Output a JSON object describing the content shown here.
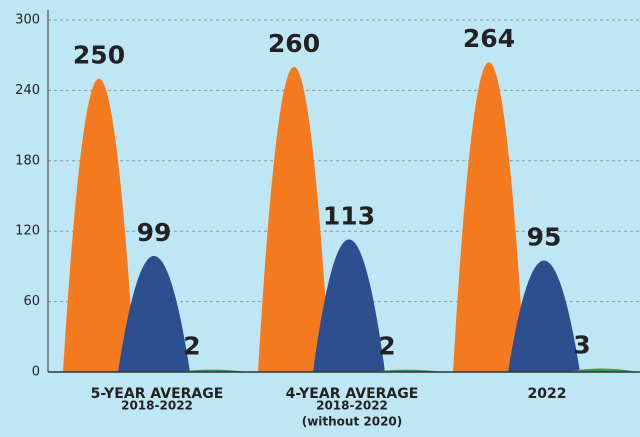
{
  "chart_data": {
    "type": "hump",
    "categories": [
      [
        "5-YEAR AVERAGE",
        "2018-2022"
      ],
      [
        "4-YEAR AVERAGE",
        "2018-2022",
        "(without 2020)"
      ],
      [
        "2022"
      ]
    ],
    "series": [
      {
        "color": "#f47a20",
        "values": [
          250,
          260,
          264
        ]
      },
      {
        "color": "#2e4f8f",
        "values": [
          99,
          113,
          95
        ]
      },
      {
        "color": "#3a9a4a",
        "values": [
          2,
          2,
          3
        ]
      }
    ],
    "ylim": [
      0,
      300
    ],
    "yticks": [
      0,
      60,
      120,
      180,
      240,
      300
    ],
    "grid": true
  }
}
